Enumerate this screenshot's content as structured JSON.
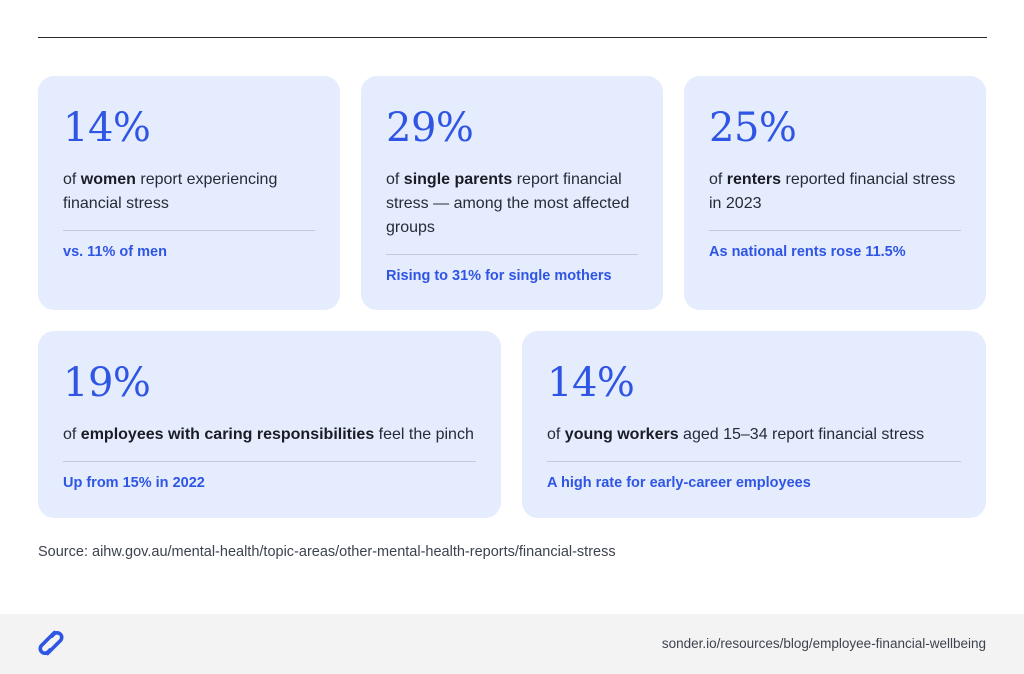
{
  "cards": [
    {
      "stat": "14%",
      "desc_pre": "of ",
      "desc_bold": "women",
      "desc_post": " report experiencing financial stress",
      "note": "vs. 11% of men"
    },
    {
      "stat": "29%",
      "desc_pre": "of ",
      "desc_bold": "single parents",
      "desc_post": " report financial stress — among the most affected groups",
      "note": "Rising to 31% for single mothers"
    },
    {
      "stat": "25%",
      "desc_pre": "of ",
      "desc_bold": "renters",
      "desc_post": " reported financial stress in 2023",
      "note": "As national rents rose 11.5%"
    },
    {
      "stat": "19%",
      "desc_pre": "of ",
      "desc_bold": "employees with caring responsibilities",
      "desc_post": " feel the pinch",
      "note": "Up from 15% in 2022"
    },
    {
      "stat": "14%",
      "desc_pre": "of ",
      "desc_bold": "young workers",
      "desc_post": " aged 15–34 report financial stress",
      "note": "A high rate for early-career employees"
    }
  ],
  "source": "Source: aihw.gov.au/mental-health/topic-areas/other-mental-health-reports/financial-stress",
  "footer": {
    "logo_icon": "sonder-s-logo-icon",
    "link": "sonder.io/resources/blog/employee-financial-wellbeing"
  },
  "colors": {
    "accent": "#2f55e4",
    "card_background": "#e5ecfd",
    "footer_background": "#f3f3f3"
  }
}
